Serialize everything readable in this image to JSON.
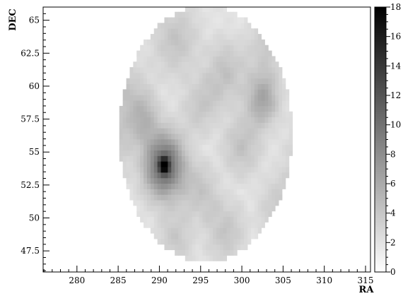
{
  "chart_data": {
    "type": "heatmap",
    "xlabel": "RA",
    "ylabel": "DEC",
    "xlim": [
      275.9,
      315.6
    ],
    "ylim": [
      45.9,
      66.0
    ],
    "x_ticks": [
      280,
      285,
      290,
      295,
      300,
      305,
      310,
      315
    ],
    "y_ticks": [
      47.5,
      50,
      52.5,
      55,
      57.5,
      60,
      62.5,
      65
    ],
    "colorbar": {
      "range": [
        0,
        18
      ],
      "ticks": [
        0,
        2,
        4,
        6,
        8,
        10,
        12,
        14,
        16,
        18
      ],
      "colors": [
        "#ffffff",
        "#000000"
      ]
    },
    "footprint": {
      "center_ra": 295.6,
      "center_dec": 56.4,
      "radius_deg": 10.5
    },
    "hotspots": [
      {
        "ra": 290.6,
        "dec": 54.0,
        "value": 18
      },
      {
        "ra": 302.5,
        "dec": 59.0,
        "value": 7
      },
      {
        "ra": 288.0,
        "dec": 57.5,
        "value": 5
      },
      {
        "ra": 307.0,
        "dec": 54.5,
        "value": 4
      }
    ],
    "grid": false
  }
}
